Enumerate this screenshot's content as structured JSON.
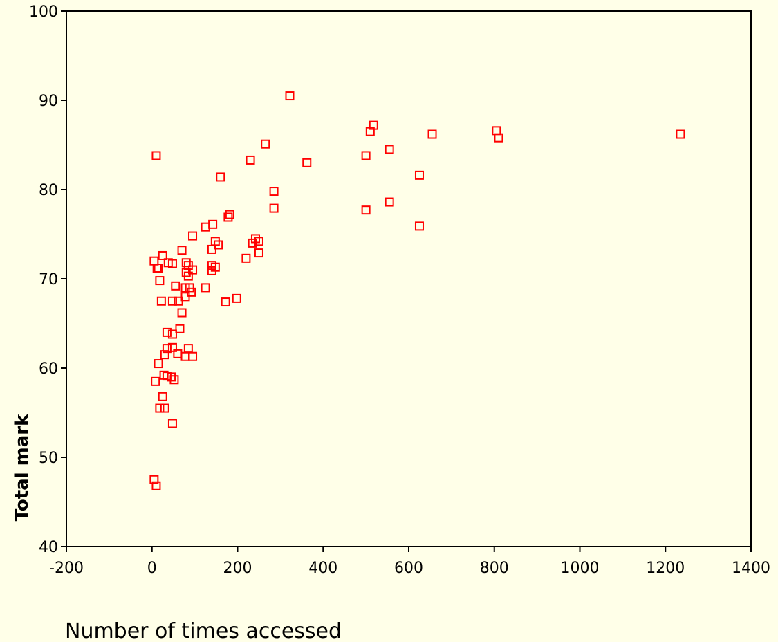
{
  "chart_data": {
    "type": "scatter",
    "title": "",
    "xlabel": "Number of times accessed",
    "ylabel": "Total mark",
    "xlim": [
      -200,
      1400
    ],
    "ylim": [
      40,
      100
    ],
    "xticks": [
      -200,
      0,
      200,
      400,
      600,
      800,
      1000,
      1200,
      1400
    ],
    "yticks": [
      40,
      50,
      60,
      70,
      80,
      90,
      100
    ],
    "grid": false,
    "marker": "hollow-square",
    "marker_color": "#FF0000",
    "background": "#FFFFE8",
    "points": [
      [
        5,
        47.5
      ],
      [
        10,
        46.8
      ],
      [
        8,
        58.5
      ],
      [
        15,
        60.5
      ],
      [
        18,
        55.5
      ],
      [
        25,
        56.8
      ],
      [
        30,
        55.5
      ],
      [
        48,
        53.8
      ],
      [
        28,
        59.2
      ],
      [
        35,
        59.1
      ],
      [
        45,
        59
      ],
      [
        52,
        58.7
      ],
      [
        30,
        61.5
      ],
      [
        35,
        62.2
      ],
      [
        48,
        62.3
      ],
      [
        60,
        61.6
      ],
      [
        78,
        61.3
      ],
      [
        85,
        62.2
      ],
      [
        95,
        61.3
      ],
      [
        35,
        64
      ],
      [
        48,
        63.8
      ],
      [
        65,
        64.4
      ],
      [
        70,
        66.2
      ],
      [
        22,
        67.5
      ],
      [
        48,
        67.5
      ],
      [
        62,
        67.5
      ],
      [
        78,
        68
      ],
      [
        55,
        69.2
      ],
      [
        78,
        69
      ],
      [
        88,
        69
      ],
      [
        92,
        68.5
      ],
      [
        125,
        69
      ],
      [
        172,
        67.4
      ],
      [
        198,
        67.8
      ],
      [
        18,
        69.8
      ],
      [
        80,
        70.7
      ],
      [
        85,
        70.3
      ],
      [
        95,
        71
      ],
      [
        12,
        71.2
      ],
      [
        15,
        71.2
      ],
      [
        38,
        71.8
      ],
      [
        48,
        71.7
      ],
      [
        80,
        71.8
      ],
      [
        85,
        71.5
      ],
      [
        140,
        71.5
      ],
      [
        140,
        70.9
      ],
      [
        148,
        71.3
      ],
      [
        5,
        72
      ],
      [
        25,
        72.6
      ],
      [
        70,
        73.2
      ],
      [
        140,
        73.3
      ],
      [
        155,
        73.8
      ],
      [
        148,
        74.2
      ],
      [
        220,
        72.3
      ],
      [
        235,
        74
      ],
      [
        242,
        74.5
      ],
      [
        250,
        74.2
      ],
      [
        250,
        72.9
      ],
      [
        95,
        74.8
      ],
      [
        125,
        75.8
      ],
      [
        142,
        76.1
      ],
      [
        178,
        76.9
      ],
      [
        182,
        77.2
      ],
      [
        285,
        77.9
      ],
      [
        285,
        79.8
      ],
      [
        160,
        81.4
      ],
      [
        230,
        83.3
      ],
      [
        265,
        85.1
      ],
      [
        322,
        90.5
      ],
      [
        362,
        83
      ],
      [
        500,
        83.8
      ],
      [
        510,
        86.5
      ],
      [
        518,
        87.2
      ],
      [
        555,
        84.5
      ],
      [
        500,
        77.7
      ],
      [
        555,
        78.6
      ],
      [
        625,
        81.6
      ],
      [
        625,
        75.9
      ],
      [
        655,
        86.2
      ],
      [
        805,
        86.6
      ],
      [
        810,
        85.8
      ],
      [
        1235,
        86.2
      ],
      [
        10,
        83.8
      ]
    ]
  }
}
